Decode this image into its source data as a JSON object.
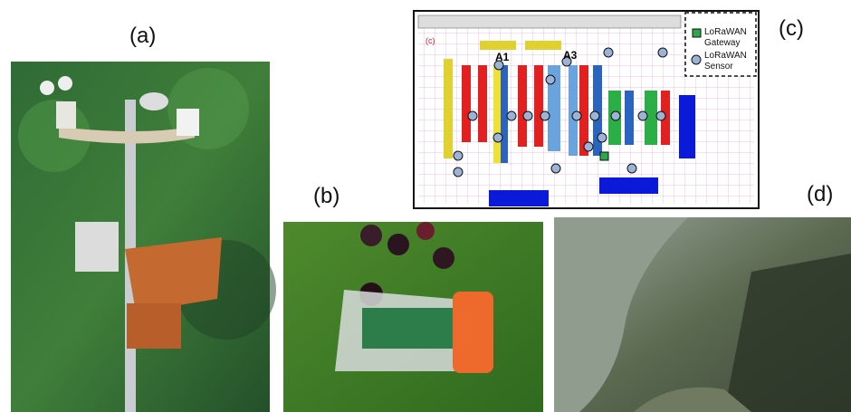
{
  "panels": {
    "a": "(a)",
    "b": "(b)",
    "c": "(c)",
    "d": "(d)"
  },
  "floor_plan": {
    "corner_label": "(c)",
    "markers": [
      "A1",
      "A3"
    ],
    "legend": {
      "gateway": "LoRaWAN Gateway",
      "sensor": "LoRaWAN Sensor"
    }
  }
}
